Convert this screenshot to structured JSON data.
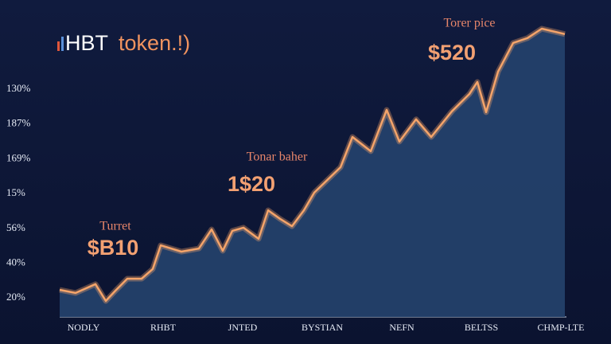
{
  "chart_data": {
    "type": "area",
    "title": [
      "HBT",
      "token.!)"
    ],
    "categories": [
      "NODLY",
      "RHBT",
      "JNTED",
      "BYSTIAN",
      "NEFN",
      "BELTSS",
      "CHMP-LTE"
    ],
    "y_axis_labels": [
      "130%",
      "187%",
      "169%",
      "15%",
      "56%",
      "40%",
      "20%"
    ],
    "x": [
      -0.18,
      0.02,
      0.27,
      0.4,
      0.52,
      0.67,
      0.85,
      0.99,
      1.09,
      1.35,
      1.57,
      1.73,
      1.87,
      1.99,
      2.13,
      2.32,
      2.44,
      2.59,
      2.74,
      2.89,
      3.02,
      3.35,
      3.5,
      3.73,
      3.93,
      4.09,
      4.3,
      4.49,
      4.75,
      4.97,
      5.07,
      5.18,
      5.33,
      5.52,
      5.7,
      5.88,
      6.17
    ],
    "values": [
      9.5,
      8.4,
      11.5,
      5.6,
      9.2,
      13.4,
      13.4,
      16.8,
      25.1,
      22.9,
      24.0,
      30.7,
      23.2,
      30.2,
      31.3,
      27.4,
      37.4,
      34.4,
      31.8,
      37.4,
      43.6,
      52.5,
      63.1,
      58.1,
      72.6,
      61.5,
      69.3,
      63.1,
      72.1,
      78.2,
      82.4,
      71.8,
      86.0,
      96.1,
      97.8,
      101.1,
      99.2
    ],
    "xlim": [
      -0.18,
      6.17
    ],
    "ylim": [
      0,
      105
    ],
    "color": "#f4a46a",
    "fill": "#24406a",
    "annotations": [
      {
        "label": "Turret",
        "text": "$B10"
      },
      {
        "label": "Tonar baher",
        "text": "1$20"
      },
      {
        "label": "Torer pice",
        "text": "$520"
      }
    ]
  }
}
